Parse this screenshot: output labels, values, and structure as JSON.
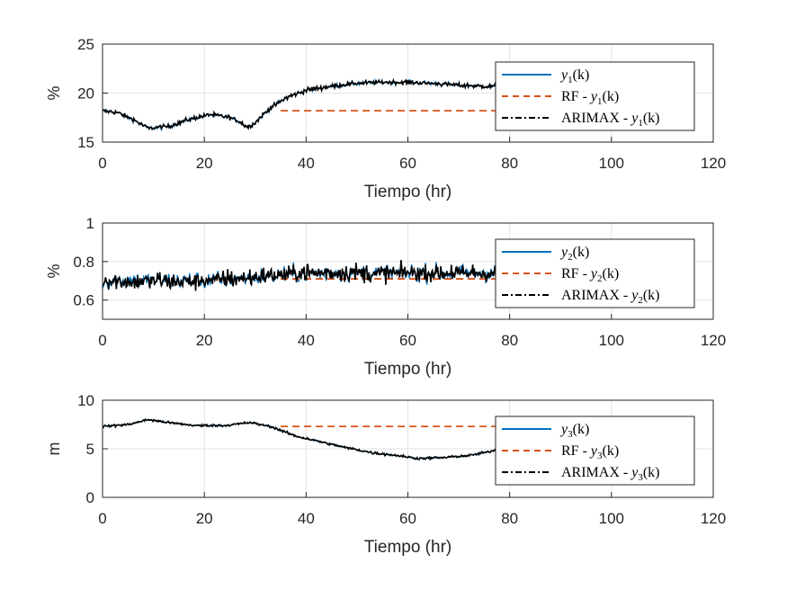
{
  "chart_data": [
    {
      "type": "line",
      "ylabel": "%",
      "xlabel": "Tiempo (hr)",
      "xlim": [
        0,
        120
      ],
      "ylim": [
        15,
        25
      ],
      "xticks": [
        "0",
        "20",
        "40",
        "60",
        "80",
        "100",
        "120"
      ],
      "yticks": [
        "15",
        "20",
        "25"
      ],
      "grid": true,
      "legend_position": "right",
      "series": [
        {
          "name": "y1(k)",
          "color": "#0072BD",
          "style": "solid",
          "x": [
            0,
            80
          ],
          "trend": [
            [
              0,
              18.2
            ],
            [
              3,
              18.0
            ],
            [
              6,
              17.3
            ],
            [
              9,
              16.4
            ],
            [
              13,
              16.6
            ],
            [
              17,
              17.3
            ],
            [
              21,
              17.8
            ],
            [
              25,
              17.5
            ],
            [
              27,
              17.1
            ],
            [
              28.5,
              16.5
            ],
            [
              30,
              17.0
            ],
            [
              33,
              18.5
            ],
            [
              36,
              19.5
            ],
            [
              40,
              20.3
            ],
            [
              45,
              20.7
            ],
            [
              50,
              21.0
            ],
            [
              55,
              21.1
            ],
            [
              60,
              21.1
            ],
            [
              65,
              21.0
            ],
            [
              70,
              20.8
            ],
            [
              75,
              20.7
            ],
            [
              80,
              20.6
            ]
          ],
          "noise": 0.22
        },
        {
          "name": "RF - y1(k)",
          "color": "#D95319",
          "style": "dashed",
          "x": [
            35,
            80
          ],
          "values": [
            18.2,
            18.2
          ]
        },
        {
          "name": "ARIMAX - y1(k)",
          "color": "#000000",
          "style": "dashdot",
          "x": [
            0,
            80
          ],
          "trend": "same-as-y1",
          "noise": 0.22
        }
      ]
    },
    {
      "type": "line",
      "ylabel": "%",
      "xlabel": "Tiempo (hr)",
      "xlim": [
        0,
        120
      ],
      "ylim": [
        0.5,
        1
      ],
      "xticks": [
        "0",
        "20",
        "40",
        "60",
        "80",
        "100",
        "120"
      ],
      "yticks": [
        "0.6",
        "0.8",
        "1"
      ],
      "grid": true,
      "legend_position": "right",
      "series": [
        {
          "name": "y2(k)",
          "color": "#0072BD",
          "style": "solid",
          "x": [
            0,
            80
          ],
          "trend": [
            [
              0,
              0.7
            ],
            [
              20,
              0.7
            ],
            [
              30,
              0.72
            ],
            [
              40,
              0.74
            ],
            [
              60,
              0.74
            ],
            [
              80,
              0.74
            ]
          ],
          "noise": 0.045
        },
        {
          "name": "RF - y2(k)",
          "color": "#D95319",
          "style": "dashed",
          "x": [
            35,
            80
          ],
          "values": [
            0.71,
            0.71
          ]
        },
        {
          "name": "ARIMAX - y2(k)",
          "color": "#000000",
          "style": "dashdot",
          "x": [
            0,
            80
          ],
          "trend": "same-as-y2",
          "noise": 0.045
        }
      ]
    },
    {
      "type": "line",
      "ylabel": "m",
      "xlabel": "Tiempo (hr)",
      "xlim": [
        0,
        120
      ],
      "ylim": [
        0,
        10
      ],
      "xticks": [
        "0",
        "20",
        "40",
        "60",
        "80",
        "100",
        "120"
      ],
      "yticks": [
        "0",
        "5",
        "10"
      ],
      "grid": true,
      "legend_position": "right",
      "series": [
        {
          "name": "y3(k)",
          "color": "#0072BD",
          "style": "solid",
          "x": [
            0,
            80
          ],
          "trend": [
            [
              0,
              7.3
            ],
            [
              5,
              7.5
            ],
            [
              9,
              8.0
            ],
            [
              13,
              7.7
            ],
            [
              18,
              7.4
            ],
            [
              24,
              7.4
            ],
            [
              29,
              7.7
            ],
            [
              33,
              7.3
            ],
            [
              38,
              6.3
            ],
            [
              43,
              5.7
            ],
            [
              48,
              5.1
            ],
            [
              53,
              4.6
            ],
            [
              58,
              4.3
            ],
            [
              62,
              4.0
            ],
            [
              67,
              4.1
            ],
            [
              72,
              4.3
            ],
            [
              76,
              4.7
            ],
            [
              80,
              5.2
            ]
          ],
          "noise": 0.12
        },
        {
          "name": "RF - y3(k)",
          "color": "#D95319",
          "style": "dashed",
          "x": [
            35,
            80
          ],
          "values": [
            7.3,
            7.3
          ]
        },
        {
          "name": "ARIMAX - y3(k)",
          "color": "#000000",
          "style": "dashdot",
          "x": [
            0,
            80
          ],
          "trend": "same-as-y3",
          "noise": 0.12
        }
      ]
    }
  ],
  "legends": [
    [
      {
        "pre": "",
        "var": "y",
        "sub": "1",
        "post": "(k)"
      },
      {
        "pre": "RF - ",
        "var": "y",
        "sub": "1",
        "post": "(k)"
      },
      {
        "pre": "ARIMAX - ",
        "var": "y",
        "sub": "1",
        "post": "(k)"
      }
    ],
    [
      {
        "pre": "",
        "var": "y",
        "sub": "2",
        "post": "(k)"
      },
      {
        "pre": "RF - ",
        "var": "y",
        "sub": "2",
        "post": "(k)"
      },
      {
        "pre": "ARIMAX - ",
        "var": "y",
        "sub": "2",
        "post": "(k)"
      }
    ],
    [
      {
        "pre": "",
        "var": "y",
        "sub": "3",
        "post": "(k)"
      },
      {
        "pre": "RF - ",
        "var": "y",
        "sub": "3",
        "post": "(k)"
      },
      {
        "pre": "ARIMAX - ",
        "var": "y",
        "sub": "3",
        "post": "(k)"
      }
    ]
  ]
}
